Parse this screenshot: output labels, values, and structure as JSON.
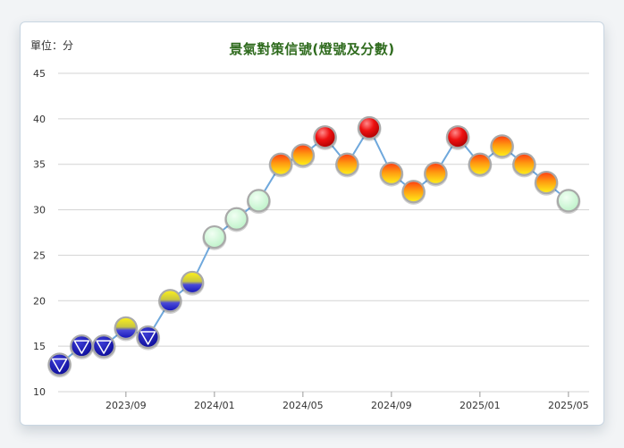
{
  "unit_label": "單位：分",
  "chart_data": {
    "type": "line",
    "title": "景氣對策信號(燈號及分數)",
    "xlabel": "",
    "ylabel": "",
    "ylim": [
      10,
      45
    ],
    "yticks": [
      10,
      15,
      20,
      25,
      30,
      35,
      40,
      45
    ],
    "x_tick_labels": [
      "2023/09",
      "2024/01",
      "2024/05",
      "2024/09",
      "2025/01",
      "2025/05"
    ],
    "x_tick_indices": [
      3,
      7,
      11,
      15,
      19,
      23
    ],
    "grid": true,
    "points": [
      {
        "period": "2023/06",
        "value": 13,
        "signal": "blue"
      },
      {
        "period": "2023/07",
        "value": 15,
        "signal": "blue"
      },
      {
        "period": "2023/08",
        "value": 15,
        "signal": "blue"
      },
      {
        "period": "2023/09",
        "value": 17,
        "signal": "yellow-blue"
      },
      {
        "period": "2023/10",
        "value": 16,
        "signal": "blue"
      },
      {
        "period": "2023/11",
        "value": 20,
        "signal": "yellow-blue"
      },
      {
        "period": "2023/12",
        "value": 22,
        "signal": "yellow-blue"
      },
      {
        "period": "2024/01",
        "value": 27,
        "signal": "green"
      },
      {
        "period": "2024/02",
        "value": 29,
        "signal": "green"
      },
      {
        "period": "2024/03",
        "value": 31,
        "signal": "green"
      },
      {
        "period": "2024/04",
        "value": 35,
        "signal": "yellow-red"
      },
      {
        "period": "2024/05",
        "value": 36,
        "signal": "yellow-red"
      },
      {
        "period": "2024/06",
        "value": 38,
        "signal": "red"
      },
      {
        "period": "2024/07",
        "value": 35,
        "signal": "yellow-red"
      },
      {
        "period": "2024/08",
        "value": 39,
        "signal": "red"
      },
      {
        "period": "2024/09",
        "value": 34,
        "signal": "yellow-red"
      },
      {
        "period": "2024/10",
        "value": 32,
        "signal": "yellow-red"
      },
      {
        "period": "2024/11",
        "value": 34,
        "signal": "yellow-red"
      },
      {
        "period": "2024/12",
        "value": 38,
        "signal": "red"
      },
      {
        "period": "2025/01",
        "value": 35,
        "signal": "yellow-red"
      },
      {
        "period": "2025/02",
        "value": 37,
        "signal": "yellow-red"
      },
      {
        "period": "2025/03",
        "value": 35,
        "signal": "yellow-red"
      },
      {
        "period": "2025/04",
        "value": 33,
        "signal": "yellow-red"
      },
      {
        "period": "2025/05",
        "value": 31,
        "signal": "green"
      }
    ],
    "line_color": "#6fa8dc"
  }
}
